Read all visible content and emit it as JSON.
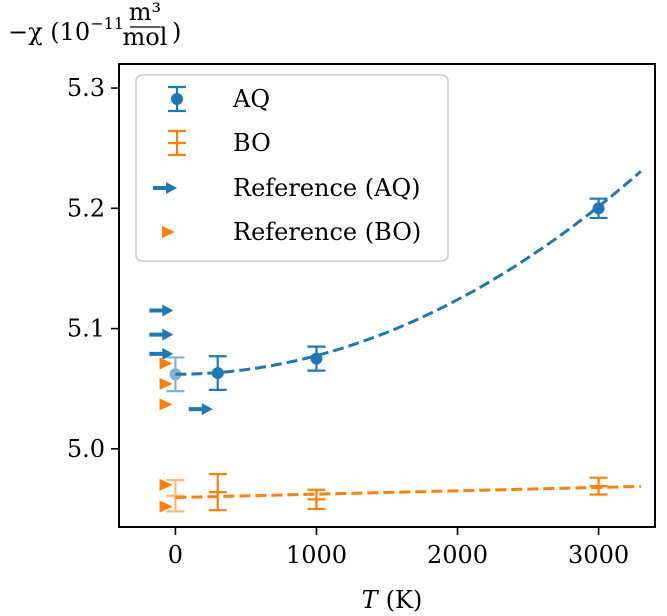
{
  "chart_data": {
    "type": "scatter",
    "xlabel_symbol": "T",
    "xlabel_unit": "(K)",
    "ylabel_prefix": "−χ (10",
    "ylabel_exp": "−11",
    "ylabel_num": "m³",
    "ylabel_den": "mol",
    "ylabel_suffix": ")",
    "xlim": [
      -400,
      3400
    ],
    "ylim": [
      4.935,
      5.32
    ],
    "xticks": [
      0,
      1000,
      2000,
      3000
    ],
    "xtick_labels": [
      "0",
      "1000",
      "2000",
      "3000"
    ],
    "yticks": [
      5.0,
      5.1,
      5.2,
      5.3
    ],
    "ytick_labels": [
      "5.0",
      "5.1",
      "5.2",
      "5.3"
    ],
    "legend_position": "top-left",
    "series": [
      {
        "name": "AQ",
        "color": "#1f77b4",
        "marker": "circle",
        "x": [
          0,
          300,
          1000,
          3000
        ],
        "y": [
          5.062,
          5.063,
          5.075,
          5.2
        ],
        "yerr": [
          0.014,
          0.014,
          0.01,
          0.008
        ],
        "faded_first": true,
        "fit_x": [
          0,
          3300
        ],
        "fit_coeffs": [
          5.062,
          0.0,
          1.55e-08
        ]
      },
      {
        "name": "BO",
        "color": "#ff7f0e",
        "marker": "hline",
        "x": [
          0,
          300,
          1000,
          3000
        ],
        "y": [
          4.961,
          4.964,
          4.958,
          4.969
        ],
        "yerr": [
          0.013,
          0.015,
          0.008,
          0.007
        ],
        "faded_first": true,
        "fit_x": [
          0,
          3300
        ],
        "fit_coeffs": [
          4.9595,
          2.8e-06,
          0
        ]
      },
      {
        "name": "Reference (AQ)",
        "color": "#1f77b4",
        "marker": "arrow",
        "x": [
          -100,
          -100,
          -100,
          180
        ],
        "y": [
          5.115,
          5.095,
          5.079,
          5.033
        ]
      },
      {
        "name": "Reference (BO)",
        "color": "#ff7f0e",
        "marker": "triangle",
        "x": [
          -70,
          -70,
          -70,
          -70,
          -70
        ],
        "y": [
          5.071,
          5.054,
          5.037,
          4.97,
          4.952
        ]
      }
    ]
  }
}
